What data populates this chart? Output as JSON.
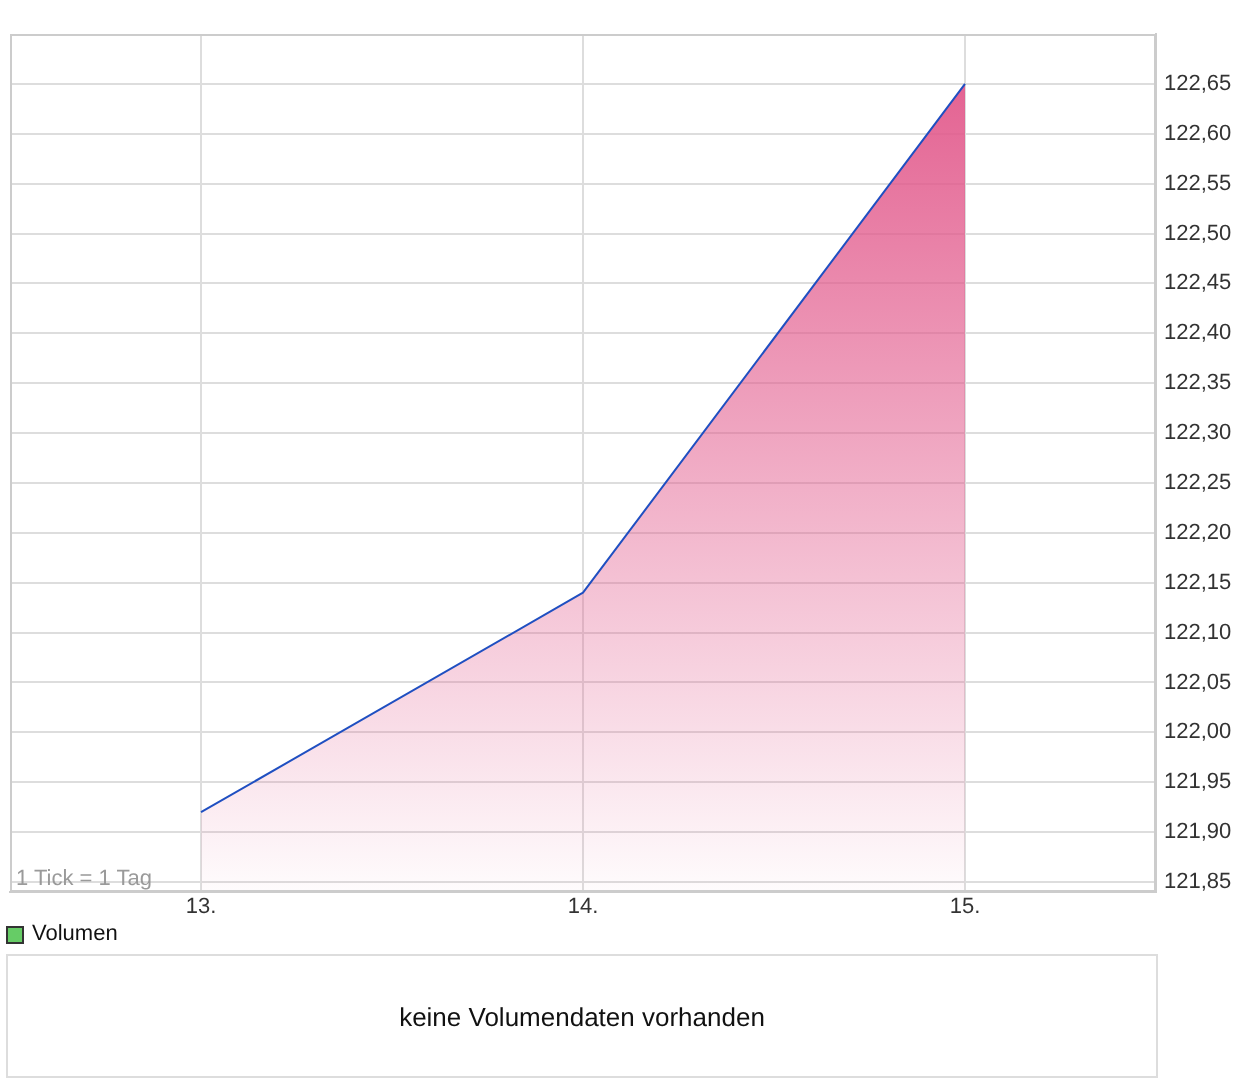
{
  "chart_data": {
    "type": "area",
    "x": [
      13,
      14,
      15
    ],
    "series": [
      {
        "color": "#1f4fc1",
        "values": [
          121.92,
          122.14,
          122.65
        ]
      }
    ],
    "xlim": [
      12.5,
      15.5
    ],
    "xticks": [
      {
        "value": 13,
        "label": "13."
      },
      {
        "value": 14,
        "label": "14."
      },
      {
        "value": 15,
        "label": "15."
      }
    ],
    "ylim": [
      121.84,
      122.7
    ],
    "yticks": [
      {
        "value": 121.85,
        "label": "121,85"
      },
      {
        "value": 121.9,
        "label": "121,90"
      },
      {
        "value": 121.95,
        "label": "121,95"
      },
      {
        "value": 122,
        "label": "122,00"
      },
      {
        "value": 122.05,
        "label": "122,05"
      },
      {
        "value": 122.1,
        "label": "122,10"
      },
      {
        "value": 122.15,
        "label": "122,15"
      },
      {
        "value": 122.2,
        "label": "122,20"
      },
      {
        "value": 122.25,
        "label": "122,25"
      },
      {
        "value": 122.3,
        "label": "122,30"
      },
      {
        "value": 122.35,
        "label": "122,35"
      },
      {
        "value": 122.4,
        "label": "122,40"
      },
      {
        "value": 122.45,
        "label": "122,45"
      },
      {
        "value": 122.5,
        "label": "122,50"
      },
      {
        "value": 122.55,
        "label": "122,55"
      },
      {
        "value": 122.6,
        "label": "122,60"
      },
      {
        "value": 122.65,
        "label": "122,65"
      }
    ],
    "grid": true,
    "annotations": [
      "1 Tick = 1 Tag",
      "Volumen",
      "keine Volumendaten vorhanden"
    ]
  }
}
